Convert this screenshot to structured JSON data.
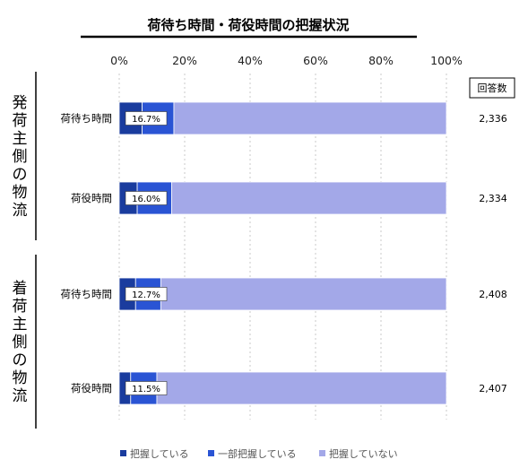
{
  "chart_data": {
    "type": "bar",
    "orientation": "horizontal",
    "stacked": true,
    "title": "荷待ち時間・荷役時間の把握状況",
    "xlim": [
      0,
      100
    ],
    "xticks": [
      "0%",
      "20%",
      "40%",
      "60%",
      "80%",
      "100%"
    ],
    "count_header": "回答数",
    "groups": [
      {
        "name": "発荷主側の物流",
        "rows": [
          {
            "label": "荷待ち時間",
            "values": [
              7,
              9.7,
              83.3
            ],
            "data_label": "16.7%",
            "count": "2,336"
          },
          {
            "label": "荷役時間",
            "values": [
              5.5,
              10.5,
              84.0
            ],
            "data_label": "16.0%",
            "count": "2,334"
          }
        ]
      },
      {
        "name": "着荷主側の物流",
        "rows": [
          {
            "label": "荷待ち時間",
            "values": [
              5,
              7.7,
              87.3
            ],
            "data_label": "12.7%",
            "count": "2,408"
          },
          {
            "label": "荷役時間",
            "values": [
              3.5,
              8.0,
              88.5
            ],
            "data_label": "11.5%",
            "count": "2,407"
          }
        ]
      }
    ],
    "series": [
      {
        "name": "把握している",
        "color": "#1a3c9e"
      },
      {
        "name": "一部把握している",
        "color": "#2a54d4"
      },
      {
        "name": "把握していない",
        "color": "#a3a8e8"
      }
    ],
    "grid": true,
    "legend": "bottom"
  }
}
